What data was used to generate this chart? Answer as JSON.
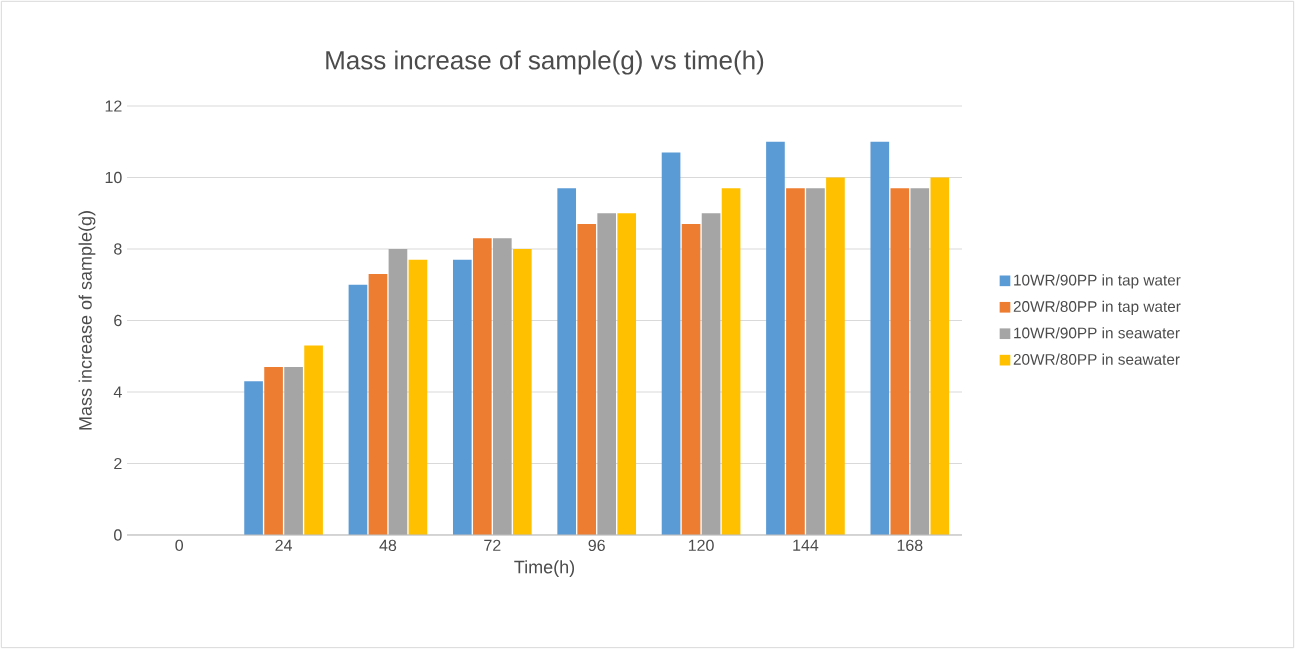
{
  "chart_data": {
    "type": "bar",
    "title": "Mass increase of sample(g) vs time(h)",
    "xlabel": "Time(h)",
    "ylabel": "Mass increase of sample(g)",
    "categories": [
      "0",
      "24",
      "48",
      "72",
      "96",
      "120",
      "144",
      "168"
    ],
    "series": [
      {
        "name": "10WR/90PP in tap water",
        "color": "#5b9bd5",
        "values": [
          0,
          4.3,
          7,
          7.7,
          9.7,
          10.7,
          11,
          11
        ]
      },
      {
        "name": "20WR/80PP in tap water",
        "color": "#ed7d31",
        "values": [
          0,
          4.7,
          7.3,
          8.3,
          8.7,
          8.7,
          9.7,
          9.7
        ]
      },
      {
        "name": "10WR/90PP in seawater",
        "color": "#a5a5a5",
        "values": [
          0,
          4.7,
          8,
          8.3,
          9,
          9,
          9.7,
          9.7
        ]
      },
      {
        "name": "20WR/80PP in seawater",
        "color": "#ffc000",
        "values": [
          0,
          5.3,
          7.7,
          8,
          9,
          9.7,
          10,
          10
        ]
      }
    ],
    "ylim": [
      0,
      12
    ],
    "yticks": [
      0,
      2,
      4,
      6,
      8,
      10,
      12
    ],
    "grid": "y",
    "legend": "right"
  }
}
